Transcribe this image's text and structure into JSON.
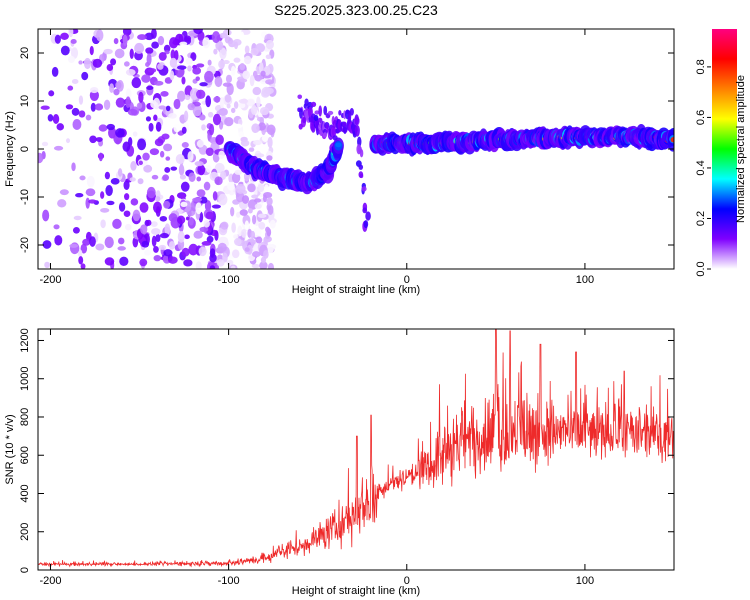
{
  "title": "S225.2025.323.00.25.C23",
  "chart_data": [
    {
      "type": "heatmap",
      "name": "spectrogram",
      "xlabel": "Height of straight line (km)",
      "ylabel": "Frequency (Hz)",
      "xlim": [
        -207,
        150
      ],
      "ylim": [
        -25,
        25
      ],
      "xticks": [
        -200,
        -100,
        0,
        100
      ],
      "xtick_labels": [
        "-200",
        "-100",
        "0",
        "100"
      ],
      "yticks": [
        -20,
        -10,
        0,
        10,
        20
      ],
      "ytick_labels": [
        "-20",
        "-10",
        "0",
        "10",
        "20"
      ],
      "colorbar": {
        "label": "Normalized spectral amplitude",
        "range": [
          0,
          0.95
        ],
        "ticks": [
          0.0,
          0.2,
          0.4,
          0.6,
          0.8
        ],
        "tick_labels": [
          "0.0",
          "0.2",
          "0.4",
          "0.6",
          "0.8"
        ],
        "colormap": [
          "#ffffff",
          "#7f00ff",
          "#0000ff",
          "#00ffff",
          "#00ff00",
          "#ffff00",
          "#ff8000",
          "#ff0000",
          "#ff0080"
        ]
      },
      "features": [
        {
          "label": "diffuse noise",
          "x_range": [
            -207,
            -105
          ],
          "freq_range": [
            -25,
            25
          ],
          "amplitude": 0.12
        },
        {
          "label": "descending band",
          "x": [
            -100,
            -85,
            -70,
            -55,
            -45,
            -38
          ],
          "freq": [
            0,
            -4,
            -6,
            -7,
            -5,
            1
          ],
          "amplitude": 0.3
        },
        {
          "label": "short streaks",
          "x": [
            -60,
            -50,
            -42,
            -35,
            -28,
            -22
          ],
          "freq": [
            8,
            6,
            4,
            6,
            5,
            -16
          ],
          "amplitude": 0.15
        },
        {
          "label": "main signal",
          "x": [
            -18,
            0,
            20,
            40,
            60,
            80,
            100,
            120,
            150
          ],
          "freq": [
            1.0,
            1.2,
            1.3,
            1.7,
            2.0,
            2.3,
            2.6,
            2.6,
            2.0
          ],
          "amplitude": 0.9
        }
      ]
    },
    {
      "type": "line",
      "name": "snr",
      "xlabel": "Height of straight line (km)",
      "ylabel": "SNR (10 * v/v)",
      "xlim": [
        -207,
        150
      ],
      "ylim": [
        0,
        1260
      ],
      "xticks": [
        -200,
        -100,
        0,
        100
      ],
      "xtick_labels": [
        "-200",
        "-100",
        "0",
        "100"
      ],
      "yticks": [
        0,
        200,
        400,
        600,
        800,
        1000,
        1200
      ],
      "ytick_labels": [
        "0",
        "200",
        "400",
        "600",
        "800",
        "1000",
        "1200"
      ],
      "series": [
        {
          "name": "SNR",
          "color": "#ee2a2a",
          "envelope_x": [
            -207,
            -150,
            -100,
            -80,
            -60,
            -40,
            -25,
            -19,
            -15,
            -5,
            10,
            20,
            35,
            50,
            70,
            100,
            150
          ],
          "envelope_mean": [
            30,
            30,
            35,
            60,
            120,
            220,
            330,
            380,
            420,
            470,
            520,
            600,
            680,
            720,
            720,
            720,
            700
          ],
          "envelope_spread": [
            12,
            12,
            20,
            40,
            80,
            140,
            220,
            260,
            70,
            80,
            130,
            250,
            300,
            320,
            280,
            230,
            180
          ],
          "peaks": [
            [
              -20,
              810
            ],
            [
              -28,
              700
            ],
            [
              50,
              1260
            ],
            [
              58,
              1250
            ],
            [
              75,
              1180
            ],
            [
              95,
              1140
            ],
            [
              122,
              1040
            ]
          ]
        }
      ]
    }
  ]
}
